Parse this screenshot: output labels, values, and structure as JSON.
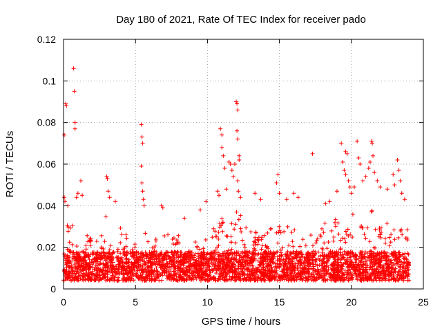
{
  "chart_data": {
    "type": "scatter",
    "title": "Day 180 of 2021, Rate Of TEC Index for receiver pado",
    "xlabel": "GPS time / hours",
    "ylabel": "ROTI / TECUs",
    "xlim": [
      0,
      25
    ],
    "ylim": [
      0,
      0.12
    ],
    "xticks": [
      0,
      5,
      10,
      15,
      20,
      25
    ],
    "yticks": [
      0,
      0.02,
      0.04,
      0.06,
      0.08,
      0.1,
      0.12
    ],
    "xtick_labels": [
      "0",
      "5",
      "10",
      "15",
      "20",
      "25"
    ],
    "ytick_labels": [
      "0",
      "0.02",
      "0.04",
      "0.06",
      "0.08",
      "0.1",
      "0.12"
    ],
    "grid": true,
    "marker": "+",
    "marker_color": "#ff0000",
    "series": [
      {
        "name": "ROTI",
        "envelope": {
          "description": "upper bound of the dense point cloud, in data units",
          "x": [
            0,
            0.5,
            1,
            1.5,
            2,
            2.5,
            3,
            3.5,
            4,
            4.5,
            5,
            5.5,
            6,
            6.5,
            7,
            7.5,
            8,
            8.5,
            9,
            9.5,
            10,
            10.5,
            11,
            11.5,
            12,
            12.5,
            13,
            13.5,
            14,
            14.5,
            15,
            15.5,
            16,
            16.5,
            17,
            17.5,
            18,
            18.5,
            19,
            19.5,
            20,
            20.5,
            21,
            21.5,
            22,
            22.5,
            23,
            23.5,
            24
          ],
          "upper": [
            0.032,
            0.03,
            0.033,
            0.028,
            0.025,
            0.026,
            0.036,
            0.03,
            0.03,
            0.025,
            0.026,
            0.034,
            0.026,
            0.025,
            0.032,
            0.025,
            0.028,
            0.025,
            0.024,
            0.024,
            0.025,
            0.03,
            0.036,
            0.032,
            0.038,
            0.034,
            0.03,
            0.028,
            0.026,
            0.03,
            0.034,
            0.03,
            0.03,
            0.025,
            0.024,
            0.03,
            0.033,
            0.03,
            0.036,
            0.04,
            0.04,
            0.038,
            0.04,
            0.038,
            0.034,
            0.032,
            0.033,
            0.032,
            0.03
          ]
        },
        "outliers": [
          {
            "x": 0.05,
            "y": 0.074
          },
          {
            "x": 0.15,
            "y": 0.089
          },
          {
            "x": 0.2,
            "y": 0.088
          },
          {
            "x": 0.05,
            "y": 0.044
          },
          {
            "x": 0.1,
            "y": 0.042
          },
          {
            "x": 0.3,
            "y": 0.04
          },
          {
            "x": 0.7,
            "y": 0.106
          },
          {
            "x": 0.75,
            "y": 0.095
          },
          {
            "x": 0.8,
            "y": 0.08
          },
          {
            "x": 0.8,
            "y": 0.077
          },
          {
            "x": 0.9,
            "y": 0.044
          },
          {
            "x": 1.0,
            "y": 0.046
          },
          {
            "x": 1.2,
            "y": 0.052
          },
          {
            "x": 1.3,
            "y": 0.045
          },
          {
            "x": 3.0,
            "y": 0.054
          },
          {
            "x": 3.05,
            "y": 0.053
          },
          {
            "x": 3.1,
            "y": 0.047
          },
          {
            "x": 3.2,
            "y": 0.044
          },
          {
            "x": 3.6,
            "y": 0.042
          },
          {
            "x": 5.4,
            "y": 0.079
          },
          {
            "x": 5.45,
            "y": 0.073
          },
          {
            "x": 5.5,
            "y": 0.07
          },
          {
            "x": 5.4,
            "y": 0.059
          },
          {
            "x": 5.45,
            "y": 0.051
          },
          {
            "x": 5.5,
            "y": 0.047
          },
          {
            "x": 5.55,
            "y": 0.043
          },
          {
            "x": 5.6,
            "y": 0.04
          },
          {
            "x": 6.8,
            "y": 0.04
          },
          {
            "x": 6.9,
            "y": 0.039
          },
          {
            "x": 8.4,
            "y": 0.034
          },
          {
            "x": 9.5,
            "y": 0.038
          },
          {
            "x": 9.9,
            "y": 0.042
          },
          {
            "x": 10.7,
            "y": 0.047
          },
          {
            "x": 10.8,
            "y": 0.045
          },
          {
            "x": 10.9,
            "y": 0.077
          },
          {
            "x": 11.0,
            "y": 0.074
          },
          {
            "x": 11.0,
            "y": 0.068
          },
          {
            "x": 11.1,
            "y": 0.064
          },
          {
            "x": 11.2,
            "y": 0.058
          },
          {
            "x": 11.3,
            "y": 0.048
          },
          {
            "x": 11.5,
            "y": 0.061
          },
          {
            "x": 11.6,
            "y": 0.06
          },
          {
            "x": 11.7,
            "y": 0.057
          },
          {
            "x": 11.8,
            "y": 0.054
          },
          {
            "x": 11.9,
            "y": 0.06
          },
          {
            "x": 12.0,
            "y": 0.09
          },
          {
            "x": 12.05,
            "y": 0.089
          },
          {
            "x": 12.1,
            "y": 0.086
          },
          {
            "x": 12.05,
            "y": 0.076
          },
          {
            "x": 12.1,
            "y": 0.072
          },
          {
            "x": 12.2,
            "y": 0.064
          },
          {
            "x": 12.2,
            "y": 0.062
          },
          {
            "x": 12.1,
            "y": 0.052
          },
          {
            "x": 12.15,
            "y": 0.047
          },
          {
            "x": 12.3,
            "y": 0.044
          },
          {
            "x": 13.3,
            "y": 0.046
          },
          {
            "x": 13.7,
            "y": 0.043
          },
          {
            "x": 14.8,
            "y": 0.051
          },
          {
            "x": 14.9,
            "y": 0.055
          },
          {
            "x": 15.0,
            "y": 0.046
          },
          {
            "x": 15.5,
            "y": 0.043
          },
          {
            "x": 16.0,
            "y": 0.046
          },
          {
            "x": 16.3,
            "y": 0.044
          },
          {
            "x": 17.3,
            "y": 0.065
          },
          {
            "x": 18.2,
            "y": 0.041
          },
          {
            "x": 18.5,
            "y": 0.042
          },
          {
            "x": 19.0,
            "y": 0.047
          },
          {
            "x": 19.3,
            "y": 0.07
          },
          {
            "x": 19.4,
            "y": 0.061
          },
          {
            "x": 19.6,
            "y": 0.066
          },
          {
            "x": 19.7,
            "y": 0.065
          },
          {
            "x": 19.5,
            "y": 0.057
          },
          {
            "x": 19.6,
            "y": 0.055
          },
          {
            "x": 19.8,
            "y": 0.052
          },
          {
            "x": 19.9,
            "y": 0.049
          },
          {
            "x": 20.0,
            "y": 0.046
          },
          {
            "x": 20.2,
            "y": 0.049
          },
          {
            "x": 20.4,
            "y": 0.071
          },
          {
            "x": 20.5,
            "y": 0.063
          },
          {
            "x": 20.6,
            "y": 0.06
          },
          {
            "x": 20.8,
            "y": 0.052
          },
          {
            "x": 21.0,
            "y": 0.054
          },
          {
            "x": 21.2,
            "y": 0.058
          },
          {
            "x": 21.3,
            "y": 0.061
          },
          {
            "x": 21.4,
            "y": 0.071
          },
          {
            "x": 21.45,
            "y": 0.07
          },
          {
            "x": 21.5,
            "y": 0.064
          },
          {
            "x": 21.6,
            "y": 0.056
          },
          {
            "x": 21.8,
            "y": 0.052
          },
          {
            "x": 22.0,
            "y": 0.049
          },
          {
            "x": 22.5,
            "y": 0.048
          },
          {
            "x": 22.9,
            "y": 0.055
          },
          {
            "x": 23.0,
            "y": 0.05
          },
          {
            "x": 23.2,
            "y": 0.062
          },
          {
            "x": 23.3,
            "y": 0.057
          },
          {
            "x": 23.4,
            "y": 0.052
          },
          {
            "x": 23.5,
            "y": 0.046
          },
          {
            "x": 23.7,
            "y": 0.043
          }
        ]
      }
    ]
  }
}
